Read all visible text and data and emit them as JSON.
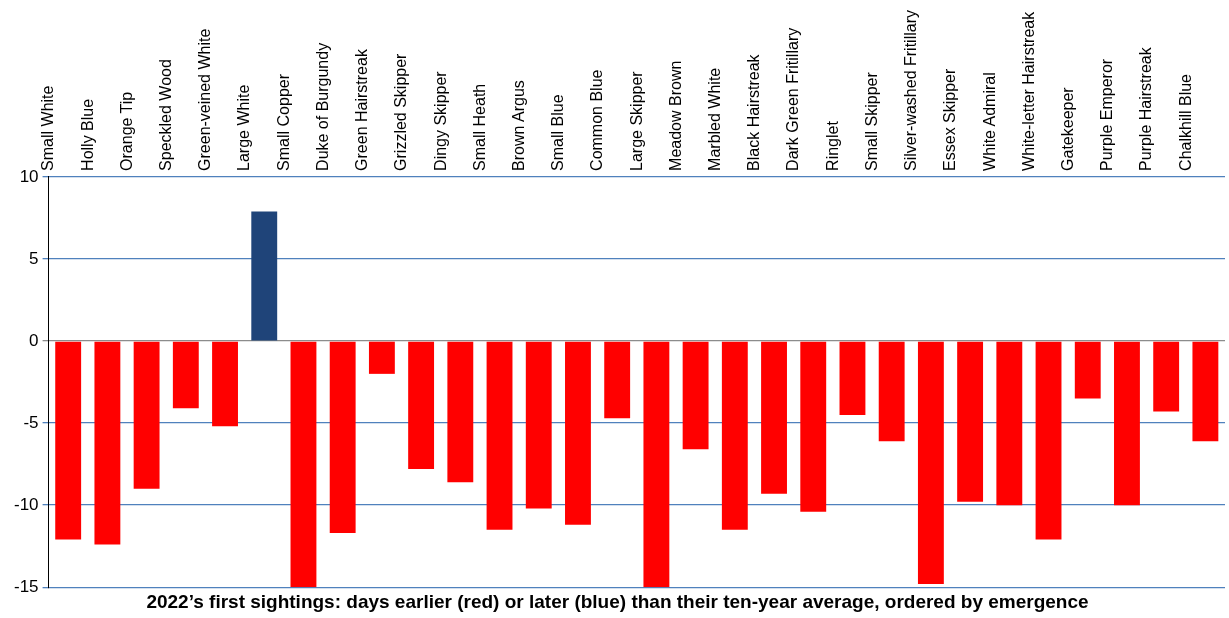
{
  "chart_data": {
    "type": "bar",
    "title": "2022’s first sightings: days earlier (red) or later (blue) than their ten-year average, ordered by emergence",
    "categories": [
      "Small White",
      "Holly Blue",
      "Orange Tip",
      "Speckled Wood",
      "Green-veined White",
      "Large White",
      "Small Copper",
      "Duke of Burgundy",
      "Green Hairstreak",
      "Grizzled Skipper",
      "Dingy Skipper",
      "Small Heath",
      "Brown Argus",
      "Small Blue",
      "Common Blue",
      "Large Skipper",
      "Meadow Brown",
      "Marbled White",
      "Black Hairstreak",
      "Dark Green Fritillary",
      "Ringlet",
      "Small Skipper",
      "Silver-washed Fritillary",
      "Essex Skipper",
      "White Admiral",
      "White-letter Hairstreak",
      "Gatekeeper",
      "Purple Emperor",
      "Purple Hairstreak",
      "Chalkhill Blue"
    ],
    "values": [
      -12.1,
      -12.4,
      -9.0,
      -4.1,
      -5.2,
      7.9,
      -15,
      -11.7,
      -2.0,
      -7.8,
      -8.6,
      -11.5,
      -10.2,
      -11.2,
      -4.7,
      -15,
      -6.6,
      -11.5,
      -9.3,
      -10.4,
      -4.5,
      -6.1,
      -14.8,
      -9.8,
      -10,
      -12.1,
      -3.5,
      -10,
      -4.3,
      -6.1
    ],
    "colors": [
      "#ff0000",
      "#ff0000",
      "#ff0000",
      "#ff0000",
      "#ff0000",
      "#1f4479",
      "#ff0000",
      "#ff0000",
      "#ff0000",
      "#ff0000",
      "#ff0000",
      "#ff0000",
      "#ff0000",
      "#ff0000",
      "#ff0000",
      "#ff0000",
      "#ff0000",
      "#ff0000",
      "#ff0000",
      "#ff0000",
      "#ff0000",
      "#ff0000",
      "#ff0000",
      "#ff0000",
      "#ff0000",
      "#ff0000",
      "#ff0000",
      "#ff0000",
      "#ff0000",
      "#ff0000"
    ],
    "ylim": [
      -15,
      10
    ],
    "yticks": [
      -15,
      -10,
      -5,
      0,
      5,
      10
    ],
    "grid": "y",
    "legend": false
  }
}
